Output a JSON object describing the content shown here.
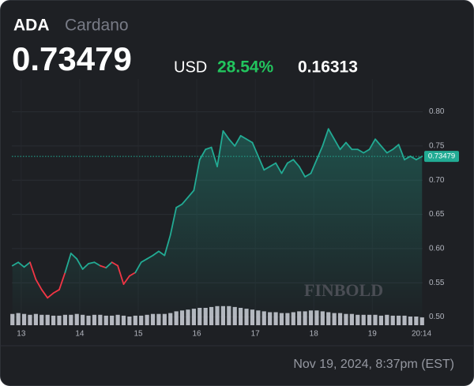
{
  "header": {
    "symbol": "ADA",
    "name": "Cardano",
    "price": "0.73479",
    "currency": "USD",
    "change_pct": "28.54%",
    "change": "0.16313"
  },
  "chart_data": {
    "type": "line",
    "watermark": "FINBOLD",
    "x": [
      12.85,
      12.95,
      13.05,
      13.15,
      13.25,
      13.35,
      13.45,
      13.55,
      13.65,
      13.75,
      13.85,
      13.95,
      14.05,
      14.15,
      14.25,
      14.35,
      14.45,
      14.55,
      14.65,
      14.75,
      14.85,
      14.95,
      15.05,
      15.15,
      15.25,
      15.35,
      15.45,
      15.55,
      15.65,
      15.75,
      15.85,
      15.95,
      16.05,
      16.15,
      16.25,
      16.35,
      16.45,
      16.55,
      16.65,
      16.75,
      16.85,
      16.95,
      17.05,
      17.15,
      17.25,
      17.35,
      17.45,
      17.55,
      17.65,
      17.75,
      17.85,
      17.95,
      18.05,
      18.15,
      18.25,
      18.35,
      18.45,
      18.55,
      18.65,
      18.75,
      18.85,
      18.95,
      19.05,
      19.15,
      19.25,
      19.35,
      19.45,
      19.55,
      19.65,
      19.75,
      19.85
    ],
    "series": [
      {
        "color": "#22ab94",
        "values": [
          0.575,
          0.58,
          0.573,
          0.58,
          0.555,
          0.54,
          0.528,
          0.535,
          0.54,
          0.565,
          0.593,
          0.585,
          0.57,
          0.578,
          0.58,
          0.575,
          0.572,
          0.58,
          0.575,
          0.548,
          0.56,
          0.565,
          0.58,
          0.585,
          0.59,
          0.596,
          0.59,
          0.62,
          0.66,
          0.665,
          0.675,
          0.685,
          0.73,
          0.745,
          0.748,
          0.72,
          0.772,
          0.76,
          0.75,
          0.765,
          0.76,
          0.755,
          0.735,
          0.715,
          0.72,
          0.725,
          0.71,
          0.725,
          0.73,
          0.72,
          0.705,
          0.71,
          0.73,
          0.75,
          0.775,
          0.76,
          0.745,
          0.755,
          0.745,
          0.745,
          0.74,
          0.745,
          0.76,
          0.75,
          0.74,
          0.745,
          0.752,
          0.73,
          0.735,
          0.73,
          0.73479
        ],
        "segment_colors": [
          "#22ab94",
          "#22ab94",
          "#22ab94",
          "#22ab94",
          "#f23645",
          "#f23645",
          "#f23645",
          "#f23645",
          "#f23645",
          "#f23645",
          "#22ab94",
          "#22ab94",
          "#22ab94",
          "#22ab94",
          "#22ab94",
          "#22ab94",
          "#f23645",
          "#22ab94",
          "#f23645",
          "#f23645",
          "#f23645",
          "#f23645",
          "#22ab94",
          "#22ab94",
          "#22ab94",
          "#22ab94",
          "#22ab94",
          "#22ab94",
          "#22ab94",
          "#22ab94",
          "#22ab94",
          "#22ab94",
          "#22ab94",
          "#22ab94",
          "#22ab94",
          "#22ab94",
          "#22ab94",
          "#22ab94",
          "#22ab94",
          "#22ab94",
          "#22ab94",
          "#22ab94",
          "#22ab94",
          "#22ab94",
          "#22ab94",
          "#22ab94",
          "#22ab94",
          "#22ab94",
          "#22ab94",
          "#22ab94",
          "#22ab94",
          "#22ab94",
          "#22ab94",
          "#22ab94",
          "#22ab94",
          "#22ab94",
          "#22ab94",
          "#22ab94",
          "#22ab94",
          "#22ab94",
          "#22ab94",
          "#22ab94",
          "#22ab94",
          "#22ab94",
          "#22ab94",
          "#22ab94",
          "#22ab94",
          "#22ab94",
          "#22ab94",
          "#22ab94",
          "#22ab94"
        ]
      }
    ],
    "volume": {
      "color": "#d1d4dc",
      "values": [
        13,
        14,
        13,
        12,
        13,
        12,
        12,
        11,
        11,
        12,
        12,
        13,
        12,
        11,
        12,
        12,
        11,
        11,
        12,
        11,
        10,
        11,
        11,
        12,
        13,
        13,
        13,
        14,
        16,
        17,
        18,
        19,
        20,
        20,
        21,
        22,
        22,
        22,
        21,
        20,
        19,
        18,
        17,
        16,
        15,
        15,
        14,
        14,
        15,
        16,
        16,
        17,
        17,
        16,
        15,
        14,
        14,
        13,
        13,
        12,
        12,
        12,
        12,
        11,
        12,
        11,
        11,
        11,
        10,
        10,
        9
      ]
    },
    "current_price": 0.73479,
    "current_price_label": "0.73479",
    "xlim": [
      12.84,
      19.86
    ],
    "ylim": [
      0.488,
      0.848
    ],
    "xticks": [
      13,
      14,
      15,
      16,
      17,
      18,
      19,
      {
        "value": 19.84,
        "label": "20:14"
      }
    ],
    "yticks": [
      {
        "value": 0.5,
        "label": "0.50"
      },
      0.55,
      {
        "value": 0.6,
        "label": "0.60"
      },
      0.65,
      {
        "value": 0.7,
        "label": "0.70"
      },
      0.75,
      {
        "value": 0.8,
        "label": "0.80"
      }
    ],
    "grid": true
  },
  "footer": {
    "timestamp": "Nov 19, 2024, 8:37pm (EST)"
  }
}
